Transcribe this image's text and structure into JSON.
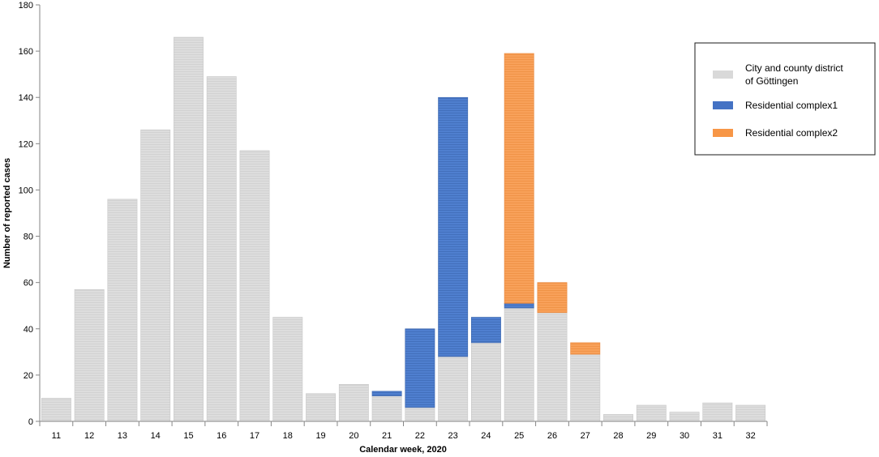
{
  "chart_data": {
    "type": "bar",
    "stacked": true,
    "xlabel": "Calendar week, 2020",
    "ylabel": "Number of reported cases",
    "ylim": [
      0,
      180
    ],
    "ytick_step": 20,
    "grid": false,
    "legend_position": "top-right",
    "categories": [
      "11",
      "12",
      "13",
      "14",
      "15",
      "16",
      "17",
      "18",
      "19",
      "20",
      "21",
      "22",
      "23",
      "24",
      "25",
      "26",
      "27",
      "28",
      "29",
      "30",
      "31",
      "32"
    ],
    "series": [
      {
        "name": "City and county district of Göttingen",
        "color": "#d9d9d9",
        "values": [
          10,
          57,
          96,
          126,
          166,
          149,
          117,
          45,
          12,
          16,
          11,
          6,
          28,
          34,
          49,
          47,
          29,
          3,
          7,
          4,
          8,
          7
        ]
      },
      {
        "name": "Residential complex1",
        "color": "#4472c4",
        "values": [
          0,
          0,
          0,
          0,
          0,
          0,
          0,
          0,
          0,
          0,
          2,
          34,
          112,
          11,
          2,
          0,
          0,
          0,
          0,
          0,
          0,
          0
        ]
      },
      {
        "name": "Residential complex2",
        "color": "#f79646",
        "values": [
          0,
          0,
          0,
          0,
          0,
          0,
          0,
          0,
          0,
          0,
          0,
          0,
          0,
          0,
          108,
          13,
          5,
          0,
          0,
          0,
          0,
          0
        ]
      }
    ],
    "legend_labels": [
      [
        "City and county district",
        "of Göttingen"
      ],
      [
        "Residential complex1"
      ],
      [
        "Residential complex2"
      ]
    ]
  }
}
